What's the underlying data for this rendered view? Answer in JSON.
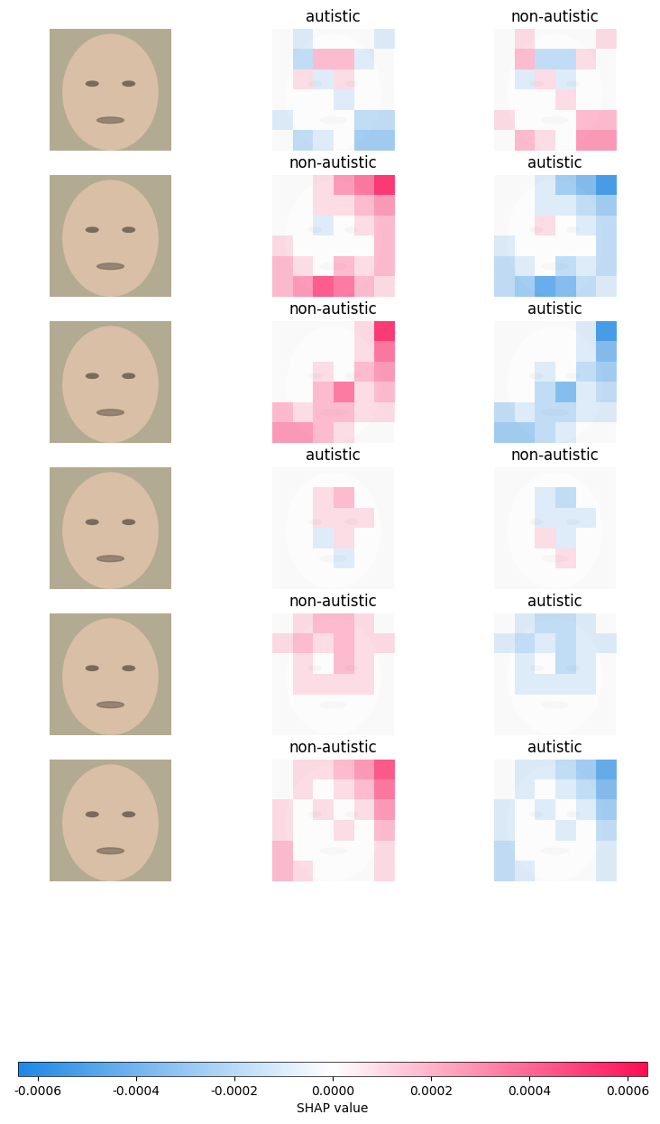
{
  "chart_data": {
    "type": "image_heatmap_grid",
    "rows": [
      {
        "titles": [
          "autistic",
          "non-autistic"
        ],
        "maps": [
          [
            [
              0,
              -0.0001,
              0,
              0,
              0,
              -0.0001
            ],
            [
              0,
              -0.0002,
              0.0002,
              0.0002,
              -0.0001,
              0
            ],
            [
              0,
              0.0001,
              -0.0001,
              0.0001,
              0,
              0
            ],
            [
              0,
              0,
              0,
              -0.0001,
              0,
              0
            ],
            [
              -0.0001,
              0,
              0,
              0,
              -0.0002,
              -0.0002
            ],
            [
              0,
              -0.0002,
              -0.0001,
              0,
              -0.0003,
              -0.0003
            ]
          ],
          [
            [
              0,
              0.0001,
              0,
              0,
              0,
              0.0001
            ],
            [
              0,
              0.0002,
              -0.0002,
              -0.0002,
              0.0001,
              0
            ],
            [
              0,
              -0.0001,
              0.0001,
              -0.0001,
              0,
              0
            ],
            [
              0,
              0,
              0,
              0.0001,
              0,
              0
            ],
            [
              0.0001,
              0,
              0,
              0,
              0.0002,
              0.0002
            ],
            [
              0,
              0.0002,
              0.0001,
              0,
              0.0003,
              0.0003
            ]
          ]
        ]
      },
      {
        "titles": [
          "non-autistic",
          "autistic"
        ],
        "maps": [
          [
            [
              0,
              0,
              0.0001,
              0.0003,
              0.0004,
              0.0006
            ],
            [
              0,
              0,
              0.0001,
              0.0001,
              0.0002,
              0.0003
            ],
            [
              0,
              0,
              -0.0001,
              0,
              0.0001,
              0.0002
            ],
            [
              0.0001,
              0,
              0,
              0,
              0,
              0.0002
            ],
            [
              0.0002,
              0.0001,
              0,
              0.0002,
              0.0001,
              0.0002
            ],
            [
              0.0002,
              0.0003,
              0.0005,
              0.0004,
              0.0002,
              0.0001
            ]
          ],
          [
            [
              0,
              0,
              -0.0001,
              -0.0003,
              -0.0004,
              -0.0006
            ],
            [
              0,
              0,
              -0.0001,
              -0.0001,
              -0.0002,
              -0.0003
            ],
            [
              0,
              0,
              0.0001,
              0,
              -0.0001,
              -0.0002
            ],
            [
              -0.0001,
              0,
              0,
              0,
              0,
              -0.0002
            ],
            [
              -0.0002,
              -0.0001,
              0,
              -0.0002,
              -0.0001,
              -0.0002
            ],
            [
              -0.0002,
              -0.0003,
              -0.0005,
              -0.0004,
              -0.0002,
              -0.0001
            ]
          ]
        ]
      },
      {
        "titles": [
          "non-autistic",
          "autistic"
        ],
        "maps": [
          [
            [
              0,
              0,
              0,
              0,
              0.0001,
              0.0006
            ],
            [
              0,
              0,
              0,
              0,
              0.0001,
              0.0004
            ],
            [
              0,
              0,
              0.0001,
              0,
              0.0002,
              0.0003
            ],
            [
              0,
              0,
              0.0002,
              0.0004,
              0.0001,
              0.0002
            ],
            [
              0.0002,
              0.0001,
              0.0002,
              0.0002,
              0.0001,
              0.0001
            ],
            [
              0.0003,
              0.0003,
              0.0002,
              0.0001,
              0,
              0
            ]
          ],
          [
            [
              0,
              0,
              0,
              0,
              -0.0001,
              -0.0006
            ],
            [
              0,
              0,
              0,
              0,
              -0.0001,
              -0.0004
            ],
            [
              0,
              0,
              -0.0001,
              0,
              -0.0002,
              -0.0003
            ],
            [
              0,
              0,
              -0.0002,
              -0.0004,
              -0.0001,
              -0.0002
            ],
            [
              -0.0002,
              -0.0001,
              -0.0002,
              -0.0002,
              -0.0001,
              -0.0001
            ],
            [
              -0.0003,
              -0.0003,
              -0.0002,
              -0.0001,
              0,
              0
            ]
          ]
        ]
      },
      {
        "titles": [
          "autistic",
          "non-autistic"
        ],
        "maps": [
          [
            [
              0,
              0,
              0,
              0,
              0,
              0
            ],
            [
              0,
              0,
              0.0001,
              0.0002,
              0,
              0
            ],
            [
              0,
              0,
              0.0001,
              0.0001,
              0.0001,
              0
            ],
            [
              0,
              0,
              -0.0001,
              0.0001,
              0,
              0
            ],
            [
              0,
              0,
              0,
              -0.0001,
              0,
              0
            ],
            [
              0,
              0,
              0,
              0,
              0,
              0
            ]
          ],
          [
            [
              0,
              0,
              0,
              0,
              0,
              0
            ],
            [
              0,
              0,
              -0.0001,
              -0.0002,
              0,
              0
            ],
            [
              0,
              0,
              -0.0001,
              -0.0001,
              -0.0001,
              0
            ],
            [
              0,
              0,
              0.0001,
              -0.0001,
              0,
              0
            ],
            [
              0,
              0,
              0,
              0.0001,
              0,
              0
            ],
            [
              0,
              0,
              0,
              0,
              0,
              0
            ]
          ]
        ]
      },
      {
        "titles": [
          "non-autistic",
          "autistic"
        ],
        "maps": [
          [
            [
              0,
              0.0001,
              0.0002,
              0.0002,
              0.0001,
              0
            ],
            [
              0.0001,
              0.0002,
              0.0001,
              0.0002,
              0.0001,
              0.0001
            ],
            [
              0,
              0.0001,
              0,
              0.0002,
              0.0001,
              0
            ],
            [
              0,
              0.0001,
              0.0001,
              0.0001,
              0.0001,
              0
            ],
            [
              0,
              0,
              0,
              0,
              0,
              0
            ],
            [
              0,
              0,
              0,
              0,
              0,
              0
            ]
          ],
          [
            [
              0,
              -0.0001,
              -0.0002,
              -0.0002,
              -0.0001,
              0
            ],
            [
              -0.0001,
              -0.0002,
              -0.0001,
              -0.0002,
              -0.0001,
              -0.0001
            ],
            [
              0,
              -0.0001,
              0,
              -0.0002,
              -0.0001,
              0
            ],
            [
              0,
              -0.0001,
              -0.0001,
              -0.0001,
              -0.0001,
              0
            ],
            [
              0,
              0,
              0,
              0,
              0,
              0
            ],
            [
              0,
              0,
              0,
              0,
              0,
              0
            ]
          ]
        ]
      },
      {
        "titles": [
          "non-autistic",
          "autistic"
        ],
        "maps": [
          [
            [
              0,
              0.0001,
              0.0001,
              0.0002,
              0.0003,
              0.0005
            ],
            [
              0,
              0.0001,
              0,
              0.0001,
              0.0002,
              0.0004
            ],
            [
              0.0001,
              0,
              0.0001,
              0,
              0.0001,
              0.0003
            ],
            [
              0.0001,
              0,
              0,
              0.0001,
              0,
              0.0002
            ],
            [
              0.0002,
              0,
              0,
              0,
              0,
              0.0001
            ],
            [
              0.0002,
              0.0001,
              0,
              0,
              0,
              0.0001
            ]
          ],
          [
            [
              0,
              -0.0001,
              -0.0001,
              -0.0002,
              -0.0003,
              -0.0005
            ],
            [
              0,
              -0.0001,
              0,
              -0.0001,
              -0.0002,
              -0.0004
            ],
            [
              -0.0001,
              0,
              -0.0001,
              0,
              -0.0001,
              -0.0003
            ],
            [
              -0.0001,
              0,
              0,
              -0.0001,
              0,
              -0.0002
            ],
            [
              -0.0002,
              0,
              0,
              0,
              0,
              -0.0001
            ],
            [
              -0.0002,
              -0.0001,
              0,
              0,
              0,
              -0.0001
            ]
          ]
        ]
      }
    ],
    "colorbar": {
      "label": "SHAP value",
      "lim": [
        -0.00064,
        0.00064
      ],
      "ticks": [
        -0.0006,
        -0.0004,
        -0.0002,
        {
          "value": 0.0,
          "label": "0.0000"
        },
        0.0002,
        0.0004,
        0.0006
      ]
    }
  }
}
